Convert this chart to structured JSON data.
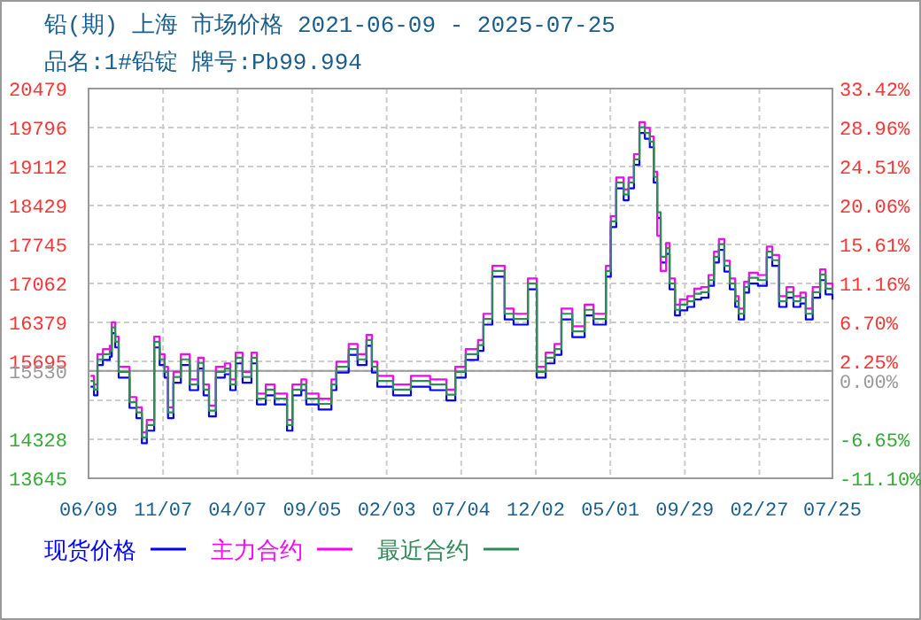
{
  "chart_data": {
    "type": "step",
    "title": "铅(期) 上海 市场价格 2021-06-09 - 2025-07-25",
    "subtitle": "品名:1#铅锭 牌号:Pb99.994",
    "x": [
      "2021-06-13",
      "2021-06-20",
      "2021-06-27",
      "2021-07-08",
      "2021-07-22",
      "2021-07-26",
      "2021-08-02",
      "2021-08-09",
      "2021-08-20",
      "2021-08-31",
      "2021-09-14",
      "2021-09-25",
      "2021-10-05",
      "2021-10-20",
      "2021-10-31",
      "2021-11-10",
      "2021-11-17",
      "2021-11-28",
      "2021-12-13",
      "2021-12-31",
      "2022-01-17",
      "2022-01-28",
      "2022-02-08",
      "2022-02-22",
      "2022-03-12",
      "2022-03-23",
      "2022-04-03",
      "2022-04-17",
      "2022-05-05",
      "2022-05-16",
      "2022-06-03",
      "2022-06-21",
      "2022-07-16",
      "2022-07-27",
      "2022-08-14",
      "2022-08-24",
      "2022-09-18",
      "2022-10-14",
      "2022-10-24",
      "2022-11-18",
      "2022-12-06",
      "2022-12-24",
      "2023-01-04",
      "2023-01-15",
      "2023-02-16",
      "2023-03-24",
      "2023-05-02",
      "2023-06-04",
      "2023-06-22",
      "2023-07-13",
      "2023-08-07",
      "2023-08-18",
      "2023-09-05",
      "2023-09-19",
      "2023-09-30",
      "2023-10-18",
      "2023-11-16",
      "2023-12-04",
      "2023-12-22",
      "2024-01-09",
      "2024-01-23",
      "2024-02-14",
      "2024-03-10",
      "2024-03-28",
      "2024-04-22",
      "2024-05-02",
      "2024-05-13",
      "2024-05-28",
      "2024-06-07",
      "2024-06-18",
      "2024-06-29",
      "2024-07-10",
      "2024-07-20",
      "2024-07-28",
      "2024-08-04",
      "2024-08-11",
      "2024-08-22",
      "2024-08-29",
      "2024-09-09",
      "2024-09-19",
      "2024-10-04",
      "2024-10-18",
      "2024-11-01",
      "2024-11-16",
      "2024-11-27",
      "2024-12-07",
      "2024-12-18",
      "2024-12-29",
      "2025-01-09",
      "2025-01-16",
      "2025-01-27",
      "2025-02-06",
      "2025-02-24",
      "2025-03-14",
      "2025-03-25",
      "2025-04-08",
      "2025-04-23",
      "2025-05-07",
      "2025-05-21",
      "2025-06-01",
      "2025-06-15",
      "2025-06-30",
      "2025-07-11",
      "2025-07-25"
    ],
    "series": [
      {
        "name": "现货价格",
        "color": "#0000ff",
        "values": [
          15250,
          15100,
          15630,
          15720,
          15780,
          16190,
          15940,
          15410,
          15410,
          14880,
          14700,
          14260,
          14480,
          15940,
          15630,
          15410,
          14700,
          15320,
          15630,
          15190,
          15570,
          15100,
          14730,
          15410,
          15470,
          15190,
          15660,
          15320,
          15660,
          14940,
          15100,
          14940,
          14480,
          15100,
          15190,
          14940,
          14850,
          15190,
          15500,
          15810,
          15630,
          15970,
          15500,
          15250,
          15100,
          15250,
          15190,
          15010,
          15410,
          15720,
          15880,
          16340,
          17180,
          17180,
          16430,
          16340,
          16960,
          15410,
          15660,
          15810,
          16430,
          16120,
          16500,
          16340,
          17180,
          18050,
          18730,
          18520,
          18730,
          19140,
          19700,
          19600,
          19450,
          18830,
          18210,
          17430,
          17580,
          16960,
          16500,
          16590,
          16650,
          16780,
          16810,
          17020,
          17430,
          17650,
          17270,
          16960,
          16650,
          16430,
          16900,
          17060,
          17020,
          17520,
          17370,
          16650,
          16810,
          16650,
          16710,
          16430,
          16810,
          17120,
          16870,
          16780
        ]
      },
      {
        "name": "主力合约",
        "color": "#ff00ff",
        "values": [
          15440,
          15290,
          15820,
          15910,
          15970,
          16380,
          16130,
          15600,
          15600,
          15070,
          14890,
          14450,
          14670,
          16130,
          15820,
          15600,
          14890,
          15510,
          15820,
          15380,
          15760,
          15290,
          14920,
          15600,
          15660,
          15380,
          15850,
          15510,
          15850,
          15130,
          15290,
          15130,
          14670,
          15290,
          15380,
          15130,
          15040,
          15380,
          15690,
          16000,
          15820,
          16160,
          15690,
          15440,
          15290,
          15440,
          15380,
          15200,
          15600,
          15910,
          16070,
          16530,
          17370,
          17370,
          16620,
          16530,
          17150,
          15600,
          15850,
          16000,
          16620,
          16310,
          16690,
          16530,
          17370,
          18240,
          18920,
          18710,
          18920,
          19330,
          19890,
          19790,
          19640,
          19020,
          17900,
          17280,
          17770,
          17150,
          16690,
          16780,
          16840,
          16970,
          17000,
          17210,
          17620,
          17840,
          17460,
          17150,
          16840,
          16620,
          17090,
          17250,
          17210,
          17710,
          17560,
          16840,
          17000,
          16840,
          16900,
          16620,
          17000,
          17310,
          17060,
          16970
        ]
      },
      {
        "name": "最近合约",
        "color": "#2e8b57",
        "values": [
          15350,
          15200,
          15730,
          15820,
          15880,
          16290,
          16040,
          15510,
          15510,
          14980,
          14800,
          14360,
          14580,
          16040,
          15730,
          15510,
          14800,
          15420,
          15730,
          15290,
          15670,
          15200,
          14830,
          15510,
          15570,
          15290,
          15760,
          15420,
          15760,
          15040,
          15200,
          15040,
          14580,
          15200,
          15290,
          15040,
          14950,
          15290,
          15600,
          15910,
          15730,
          16070,
          15600,
          15350,
          15200,
          15350,
          15290,
          15110,
          15510,
          15820,
          15980,
          16440,
          17280,
          17280,
          16530,
          16440,
          17060,
          15510,
          15760,
          15910,
          16530,
          16220,
          16600,
          16440,
          17280,
          18150,
          18830,
          18620,
          18830,
          19240,
          19800,
          19700,
          19550,
          18930,
          18310,
          17530,
          17680,
          17060,
          16600,
          16690,
          16750,
          16880,
          16910,
          17120,
          17530,
          17750,
          17370,
          17060,
          16750,
          16530,
          17000,
          17160,
          17120,
          17620,
          17470,
          16750,
          16910,
          16750,
          16810,
          16530,
          16910,
          17220,
          16970,
          16880
        ]
      }
    ],
    "xlim": [
      "2021-06-09",
      "2025-07-25"
    ],
    "xticks": [
      {
        "value": "2021-06-09",
        "label": "06/09"
      },
      {
        "value": "2021-11-07",
        "label": "11/07"
      },
      {
        "value": "2022-04-07",
        "label": "04/07"
      },
      {
        "value": "2022-09-05",
        "label": "09/05"
      },
      {
        "value": "2023-02-03",
        "label": "02/03"
      },
      {
        "value": "2023-07-04",
        "label": "07/04"
      },
      {
        "value": "2023-12-02",
        "label": "12/02"
      },
      {
        "value": "2024-05-01",
        "label": "05/01"
      },
      {
        "value": "2024-09-29",
        "label": "09/29"
      },
      {
        "value": "2025-02-27",
        "label": "02/27"
      },
      {
        "value": "2025-07-25",
        "label": "07/25"
      }
    ],
    "ylim": [
      13645,
      20479
    ],
    "yticks": [
      20479,
      19796,
      19112,
      18429,
      17745,
      17062,
      16379,
      15695,
      15530,
      {
        "value": 15012,
        "label": null
      },
      14328,
      13645
    ],
    "y2lim": [
      -11.1,
      33.42
    ],
    "y2ticks": [
      {
        "value": 33.42,
        "label": "33.42%"
      },
      {
        "value": 28.96,
        "label": "28.96%"
      },
      {
        "value": 24.51,
        "label": "24.51%"
      },
      {
        "value": 20.06,
        "label": "20.06%"
      },
      {
        "value": 15.61,
        "label": "15.61%"
      },
      {
        "value": 11.16,
        "label": "11.16%"
      },
      {
        "value": 6.7,
        "label": "6.70%"
      },
      {
        "value": 2.25,
        "label": "2.25%"
      },
      {
        "value": 0,
        "label": "0.00%"
      },
      {
        "value": -6.65,
        "label": "-6.65%"
      },
      {
        "value": -11.1,
        "label": "-11.10%"
      }
    ],
    "ref_lines": [
      {
        "axis": "y",
        "value": 15530,
        "color": "#999999"
      }
    ],
    "grid": true,
    "legend": "bottom"
  }
}
